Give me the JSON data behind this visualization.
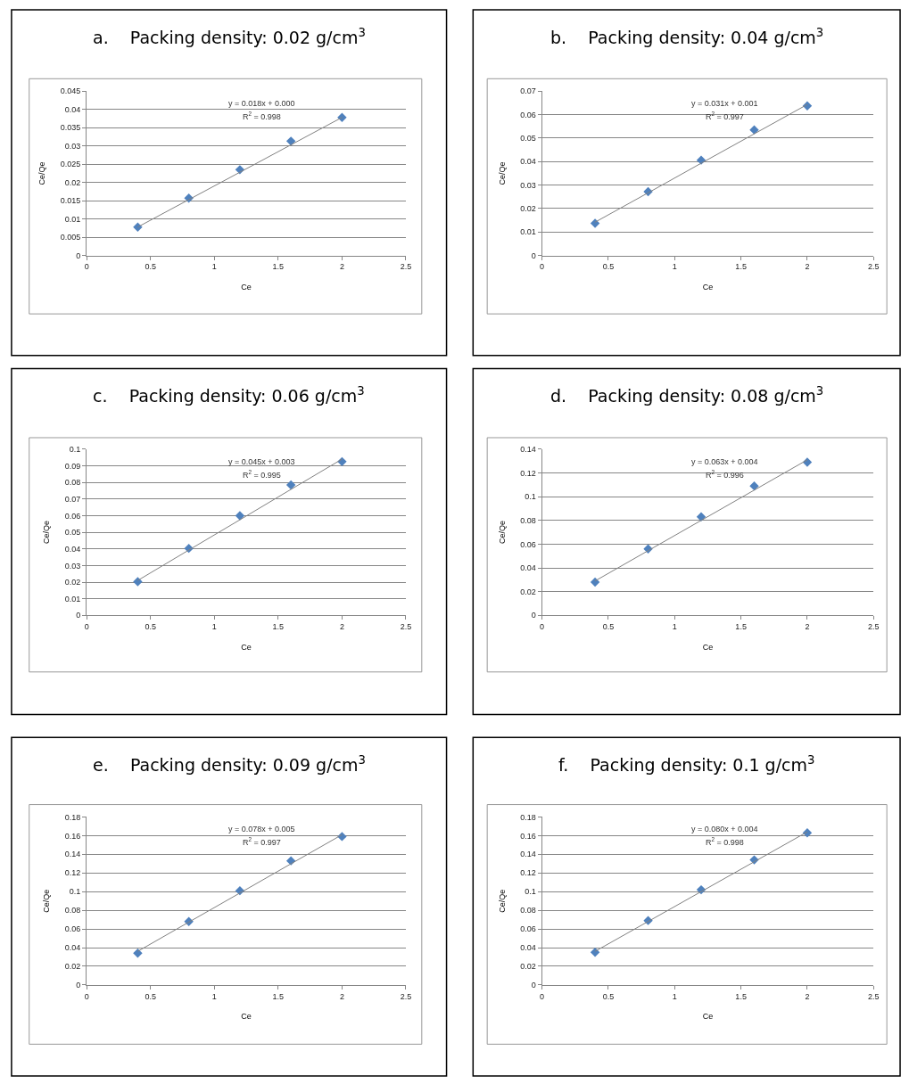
{
  "chart_data": [
    {
      "type": "scatter",
      "title": "a.    Packing density: 0.02 g/cm$^{3}$",
      "xlabel": "Ce",
      "ylabel": "Ce/Qe",
      "annotations": [
        "y = 0.018x + 0.000",
        "R$^{2}$ = 0.998"
      ],
      "x": [
        0.4,
        0.8,
        1.2,
        1.6,
        2
      ],
      "xlim": [
        0,
        2.5
      ],
      "xticks": [
        0,
        0.5,
        1,
        1.5,
        2,
        2.5
      ],
      "ylim": [
        0,
        0.045
      ],
      "yticks": [
        0,
        0.005,
        0.01,
        0.015,
        0.02,
        0.025,
        0.03,
        0.035,
        0.04,
        0.045
      ],
      "grid": "y",
      "marker": "diamond",
      "series": [
        {
          "color": "#4f81bd",
          "values": [
            0.0078,
            0.0157,
            0.0235,
            0.0313,
            0.0378
          ]
        },
        {
          "type": "line",
          "color": "#808080",
          "values": [
            0.0078,
            0.0153,
            0.0228,
            0.0303,
            0.0378
          ],
          "marker": "none"
        }
      ]
    },
    {
      "type": "scatter",
      "title": "b.    Packing density: 0.04 g/cm$^{3}$",
      "xlabel": "Ce",
      "ylabel": "Ce/Qe",
      "annotations": [
        "y = 0.031x + 0.001",
        "R$^{2}$ = 0.997"
      ],
      "x": [
        0.4,
        0.8,
        1.2,
        1.6,
        2
      ],
      "xlim": [
        0,
        2.5
      ],
      "xticks": [
        0,
        0.5,
        1,
        1.5,
        2,
        2.5
      ],
      "ylim": [
        0,
        0.07
      ],
      "yticks": [
        0,
        0.01,
        0.02,
        0.03,
        0.04,
        0.05,
        0.06,
        0.07
      ],
      "grid": "y",
      "marker": "diamond",
      "series": [
        {
          "color": "#4f81bd",
          "values": [
            0.0137,
            0.0272,
            0.0406,
            0.0535,
            0.0637
          ]
        },
        {
          "type": "line",
          "color": "#808080",
          "values": [
            0.0142,
            0.0267,
            0.0393,
            0.0518,
            0.0643
          ],
          "marker": "none"
        }
      ]
    },
    {
      "type": "scatter",
      "title": "c.    Packing density: 0.06 g/cm$^{3}$",
      "xlabel": "Ce",
      "ylabel": "Ce/Qe",
      "annotations": [
        "y = 0.045x + 0.003",
        "R$^{2}$ = 0.995"
      ],
      "x": [
        0.4,
        0.8,
        1.2,
        1.6,
        2
      ],
      "xlim": [
        0,
        2.5
      ],
      "xticks": [
        0,
        0.5,
        1,
        1.5,
        2,
        2.5
      ],
      "ylim": [
        0,
        0.1
      ],
      "yticks": [
        0,
        0.01,
        0.02,
        0.03,
        0.04,
        0.05,
        0.06,
        0.07,
        0.08,
        0.09,
        0.1
      ],
      "grid": "y",
      "marker": "diamond",
      "series": [
        {
          "color": "#4f81bd",
          "values": [
            0.0203,
            0.0403,
            0.06,
            0.0785,
            0.0925
          ]
        },
        {
          "type": "line",
          "color": "#808080",
          "values": [
            0.021,
            0.0393,
            0.0575,
            0.0758,
            0.094
          ],
          "marker": "none"
        }
      ]
    },
    {
      "type": "scatter",
      "title": "d.    Packing density: 0.08 g/cm$^{3}$",
      "xlabel": "Ce",
      "ylabel": "Ce/Qe",
      "annotations": [
        "y = 0.063x + 0.004",
        "R$^{2}$ = 0.996"
      ],
      "x": [
        0.4,
        0.8,
        1.2,
        1.6,
        2
      ],
      "xlim": [
        0,
        2.5
      ],
      "xticks": [
        0,
        0.5,
        1,
        1.5,
        2,
        2.5
      ],
      "ylim": [
        0,
        0.14
      ],
      "yticks": [
        0,
        0.02,
        0.04,
        0.06,
        0.08,
        0.1,
        0.12,
        0.14
      ],
      "grid": "y",
      "marker": "diamond",
      "series": [
        {
          "color": "#4f81bd",
          "values": [
            0.028,
            0.056,
            0.083,
            0.109,
            0.129
          ]
        },
        {
          "type": "line",
          "color": "#808080",
          "values": [
            0.029,
            0.0545,
            0.08,
            0.1055,
            0.131
          ],
          "marker": "none"
        }
      ]
    },
    {
      "type": "scatter",
      "title": "e.    Packing density: 0.09 g/cm$^{3}$",
      "xlabel": "Ce",
      "ylabel": "Ce/Qe",
      "annotations": [
        "y = 0.078x + 0.005",
        "R$^{2}$ = 0.997"
      ],
      "x": [
        0.4,
        0.8,
        1.2,
        1.6,
        2
      ],
      "xlim": [
        0,
        2.5
      ],
      "xticks": [
        0,
        0.5,
        1,
        1.5,
        2,
        2.5
      ],
      "ylim": [
        0,
        0.18
      ],
      "yticks": [
        0,
        0.02,
        0.04,
        0.06,
        0.08,
        0.1,
        0.12,
        0.14,
        0.16,
        0.18
      ],
      "grid": "y",
      "marker": "diamond",
      "series": [
        {
          "color": "#4f81bd",
          "values": [
            0.034,
            0.068,
            0.101,
            0.133,
            0.159
          ]
        },
        {
          "type": "line",
          "color": "#808080",
          "values": [
            0.036,
            0.0673,
            0.0985,
            0.1298,
            0.161
          ],
          "marker": "none"
        }
      ]
    },
    {
      "type": "scatter",
      "title": "f.    Packing density: 0.1 g/cm$^{3}$",
      "xlabel": "Ce",
      "ylabel": "Ce/Qe",
      "annotations": [
        "y = 0.080x + 0.004",
        "R$^{2}$ = 0.998"
      ],
      "x": [
        0.4,
        0.8,
        1.2,
        1.6,
        2
      ],
      "xlim": [
        0,
        2.5
      ],
      "xticks": [
        0,
        0.5,
        1,
        1.5,
        2,
        2.5
      ],
      "ylim": [
        0,
        0.18
      ],
      "yticks": [
        0,
        0.02,
        0.04,
        0.06,
        0.08,
        0.1,
        0.12,
        0.14,
        0.16,
        0.18
      ],
      "grid": "y",
      "marker": "diamond",
      "series": [
        {
          "color": "#4f81bd",
          "values": [
            0.035,
            0.069,
            0.102,
            0.134,
            0.163
          ]
        },
        {
          "type": "line",
          "color": "#808080",
          "values": [
            0.036,
            0.068,
            0.1,
            0.132,
            0.164
          ],
          "marker": "none"
        }
      ]
    }
  ]
}
